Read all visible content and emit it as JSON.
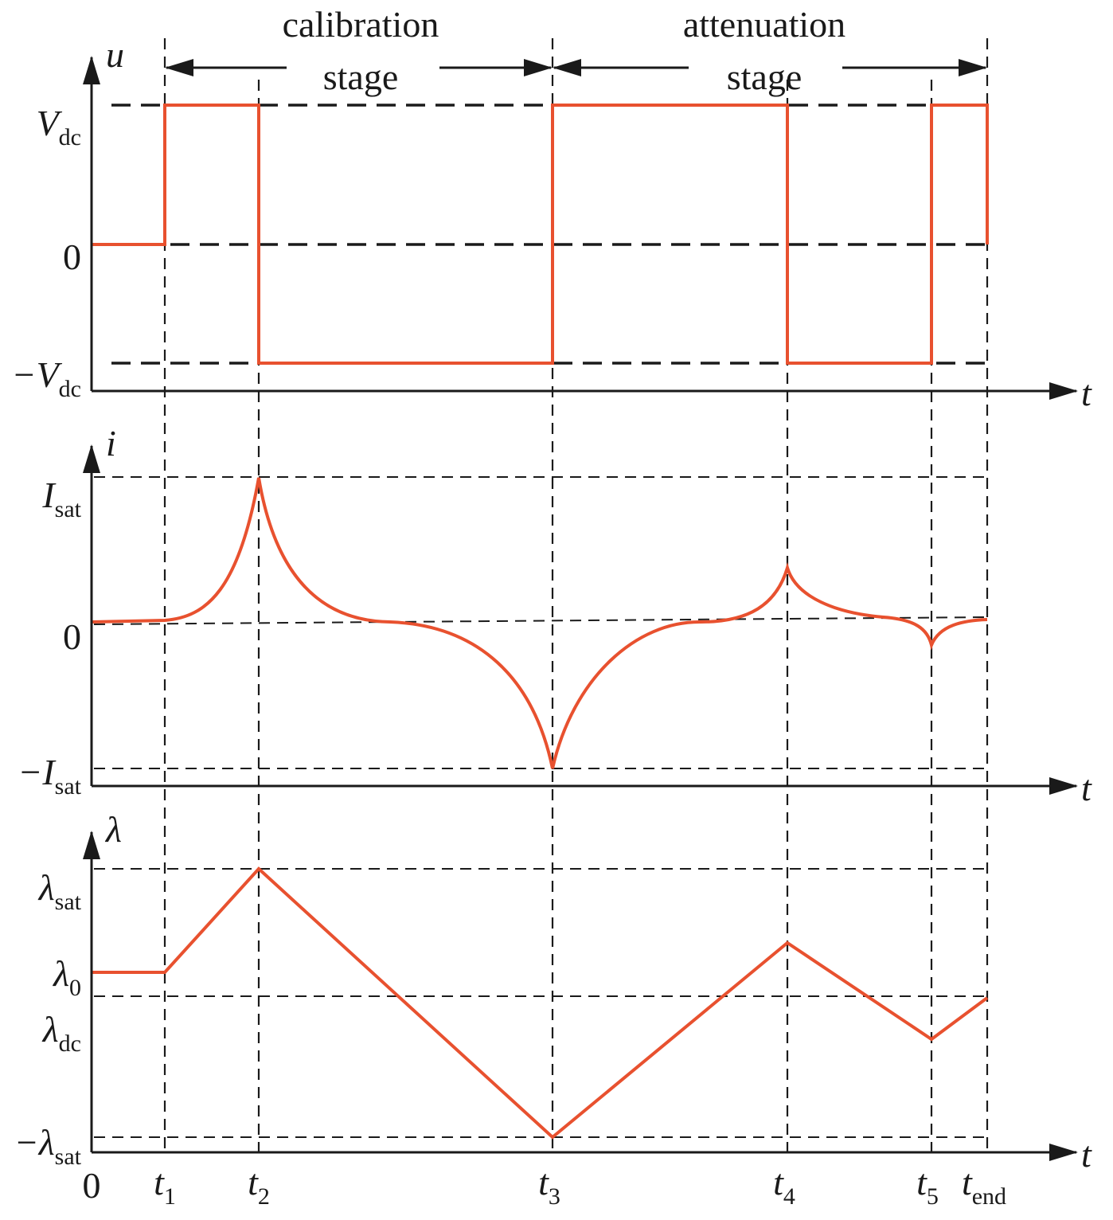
{
  "header": {
    "stages": [
      {
        "line1": "calibration",
        "line2": "stage"
      },
      {
        "line1": "attenuation",
        "line2": "stage"
      }
    ]
  },
  "panels": [
    {
      "y_axis": "u",
      "x_axis": "t",
      "levels": [
        {
          "main": "V",
          "sub": "dc"
        },
        {
          "main": "0"
        },
        {
          "main": "−V",
          "sub": "dc"
        }
      ]
    },
    {
      "y_axis": "i",
      "x_axis": "t",
      "levels": [
        {
          "main": "I",
          "sub": "sat"
        },
        {
          "main": "0"
        },
        {
          "main": "−I",
          "sub": "sat"
        }
      ]
    },
    {
      "y_axis": "λ",
      "x_axis": "t",
      "levels": [
        {
          "main": "λ",
          "sub": "sat"
        },
        {
          "main": "λ",
          "sub": "0"
        },
        {
          "main": "λ",
          "sub": "dc"
        },
        {
          "main": "−λ",
          "sub": "sat"
        }
      ]
    }
  ],
  "time_axis": {
    "origin": "0",
    "times": [
      {
        "main": "t",
        "sub": "1"
      },
      {
        "main": "t",
        "sub": "2"
      },
      {
        "main": "t",
        "sub": "3"
      },
      {
        "main": "t",
        "sub": "4"
      },
      {
        "main": "t",
        "sub": "5"
      },
      {
        "main": "t",
        "sub": "end"
      }
    ]
  }
}
